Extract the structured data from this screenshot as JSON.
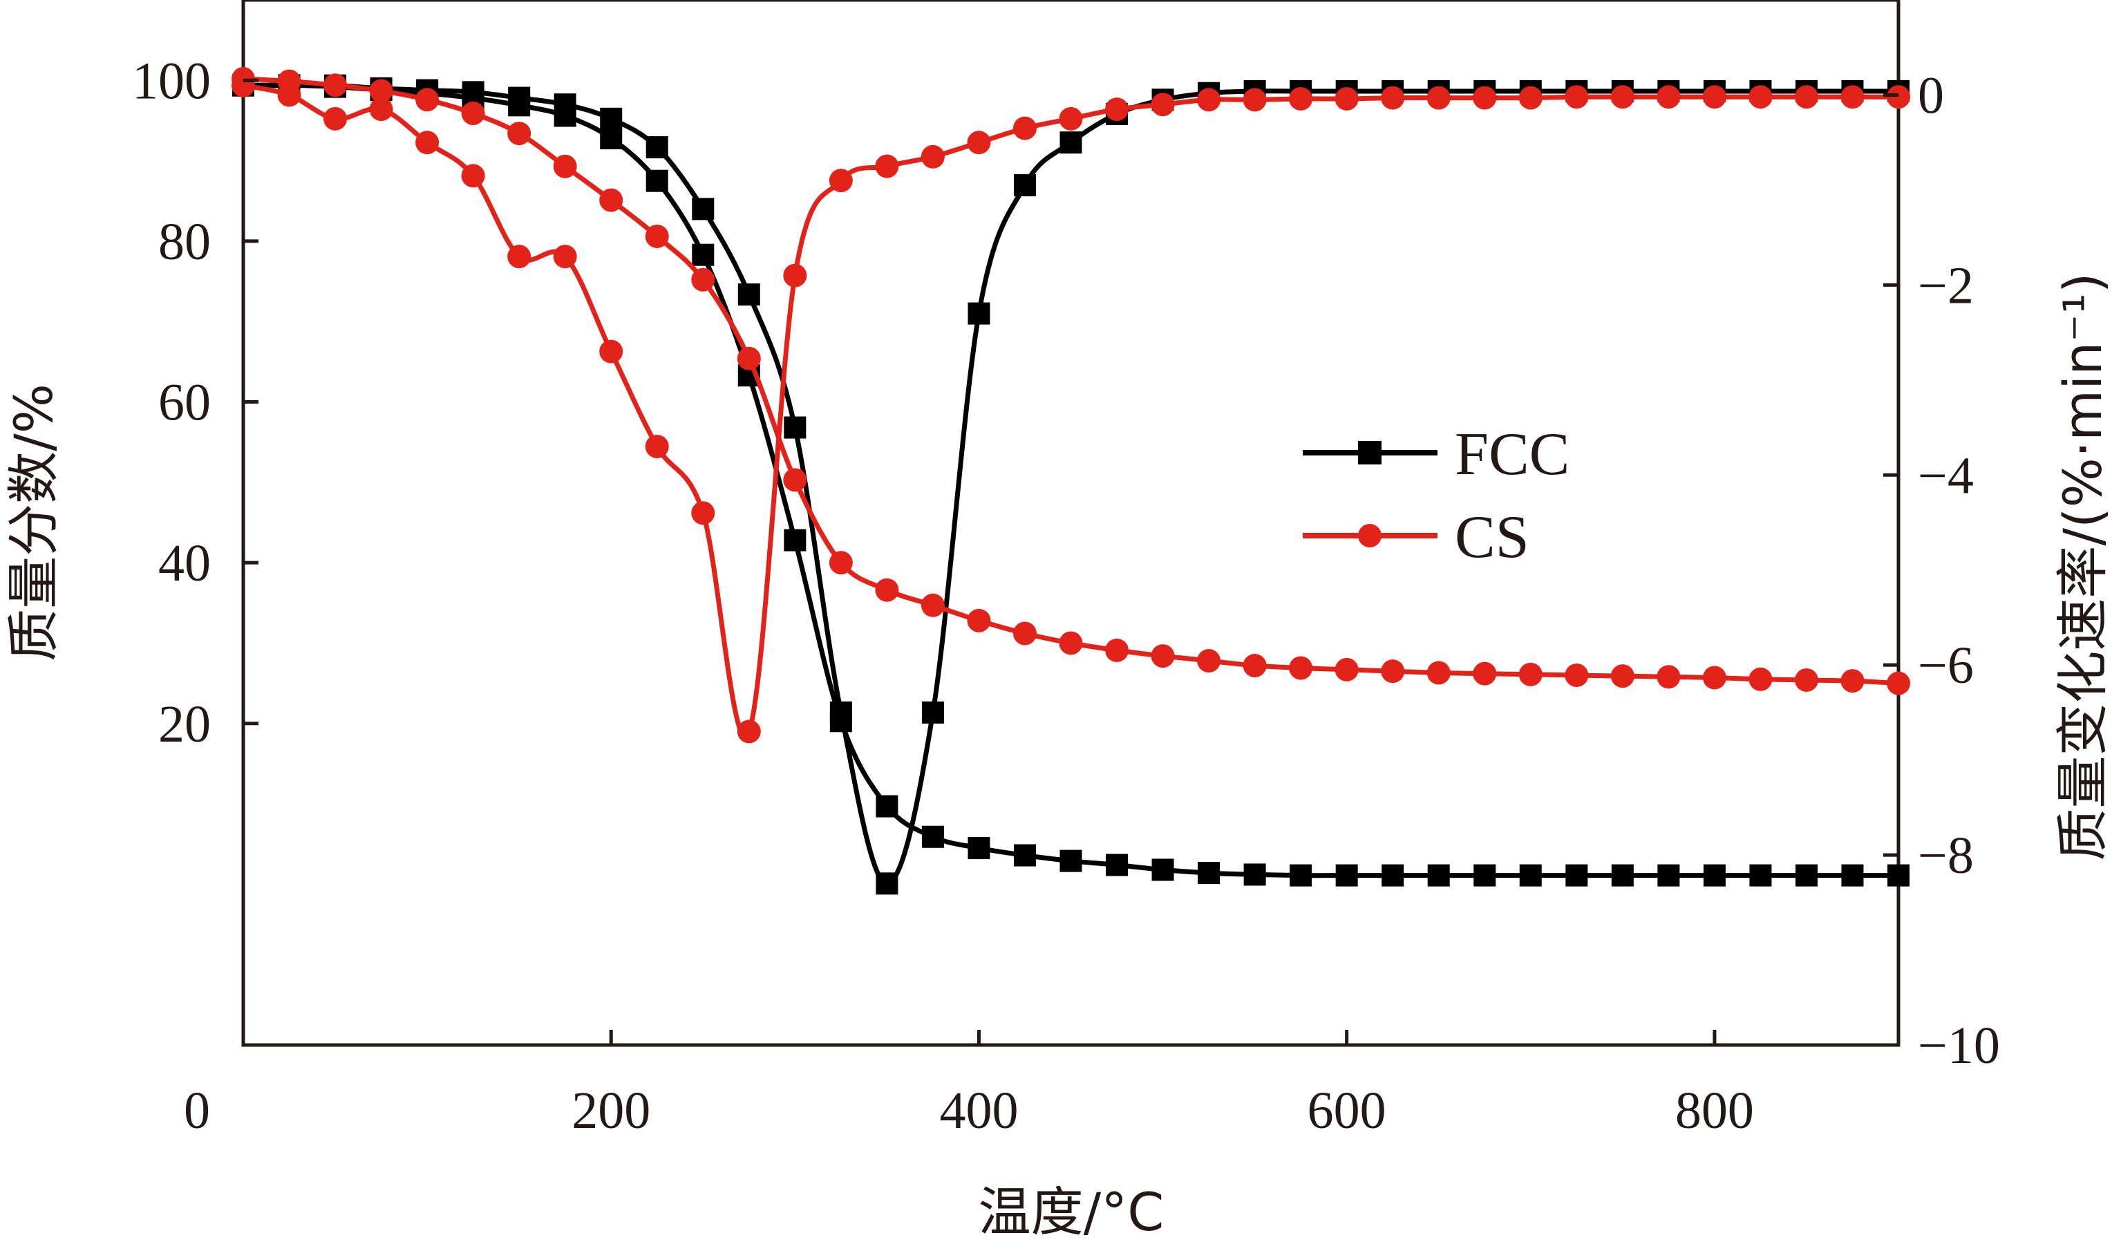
{
  "chart_data": {
    "type": "line",
    "title": "",
    "xlabel": "温度/°C",
    "ylabel_left": "质量分数/%",
    "ylabel_right": "质量变化速率/(%·min⁻¹)",
    "xlim": [
      0,
      900
    ],
    "ylim_left": [
      -20,
      110
    ],
    "ylim_right": [
      -10,
      1
    ],
    "x_ticks": [
      0,
      200,
      400,
      600,
      800
    ],
    "x_tick_labels": [
      "0",
      "200",
      "400",
      "600",
      "800"
    ],
    "y_left_ticks": [
      20,
      40,
      60,
      80,
      100
    ],
    "y_left_tick_labels": [
      "20",
      "40",
      "60",
      "80",
      "100"
    ],
    "y_right_ticks": [
      0,
      -2,
      -4,
      -6,
      -8,
      -10
    ],
    "y_right_tick_labels": [
      "0",
      "−2",
      "−4",
      "−6",
      "−8",
      "−10"
    ],
    "grid": false,
    "legend_position": "center-right",
    "series": [
      {
        "name": "FCC",
        "color": "#000000",
        "marker": "square",
        "axis": "left",
        "x": [
          0,
          25,
          50,
          75,
          100,
          125,
          150,
          175,
          200,
          225,
          250,
          275,
          300,
          325,
          350,
          375,
          400,
          425,
          450,
          475,
          500,
          525,
          550,
          575,
          600,
          625,
          650,
          675,
          700,
          725,
          750,
          775,
          800,
          825,
          850,
          875,
          900
        ],
        "y": [
          99.4,
          99.4,
          99.2,
          98.8,
          98.4,
          97.8,
          96.9,
          95.6,
          92.8,
          87.5,
          78.3,
          63.3,
          42.8,
          20.3,
          9.7,
          5.9,
          4.5,
          3.6,
          2.9,
          2.4,
          1.8,
          1.4,
          1.2,
          1.1,
          1.1,
          1.1,
          1.1,
          1.1,
          1.1,
          1.1,
          1.1,
          1.1,
          1.1,
          1.1,
          1.1,
          1.1,
          1.1
        ]
      },
      {
        "name": "FCC",
        "color": "#000000",
        "marker": "square",
        "axis": "right",
        "x": [
          0,
          25,
          50,
          75,
          100,
          125,
          150,
          175,
          200,
          225,
          250,
          275,
          300,
          325,
          350,
          375,
          400,
          425,
          450,
          475,
          500,
          525,
          550,
          575,
          600,
          625,
          650,
          675,
          700,
          725,
          750,
          775,
          800,
          825,
          850,
          875,
          900
        ],
        "y": [
          0.1,
          0.1,
          0.1,
          0.07,
          0.05,
          0.03,
          -0.03,
          -0.1,
          -0.25,
          -0.55,
          -1.2,
          -2.1,
          -3.5,
          -6.5,
          -8.3,
          -6.5,
          -2.3,
          -0.95,
          -0.5,
          -0.2,
          -0.05,
          0.02,
          0.04,
          0.04,
          0.04,
          0.04,
          0.04,
          0.04,
          0.04,
          0.04,
          0.04,
          0.04,
          0.04,
          0.04,
          0.04,
          0.04,
          0.04
        ]
      },
      {
        "name": "CS",
        "color": "#e2231a",
        "marker": "circle",
        "axis": "left",
        "x": [
          0,
          25,
          50,
          75,
          100,
          125,
          150,
          175,
          200,
          225,
          250,
          275,
          300,
          325,
          350,
          375,
          400,
          425,
          450,
          475,
          500,
          525,
          550,
          575,
          600,
          625,
          650,
          675,
          700,
          725,
          750,
          775,
          800,
          825,
          850,
          875,
          900
        ],
        "y": [
          100.2,
          99.9,
          99.4,
          98.7,
          97.6,
          95.9,
          93.4,
          89.3,
          85.1,
          80.6,
          75.2,
          65.4,
          50.3,
          40.0,
          36.6,
          34.7,
          32.8,
          31.2,
          30.0,
          29.1,
          28.4,
          27.8,
          27.2,
          26.9,
          26.7,
          26.5,
          26.3,
          26.2,
          26.1,
          26.0,
          25.9,
          25.8,
          25.7,
          25.5,
          25.4,
          25.3,
          25.0
        ]
      },
      {
        "name": "CS",
        "color": "#e2231a",
        "marker": "circle",
        "axis": "right",
        "x": [
          0,
          25,
          50,
          75,
          100,
          125,
          150,
          175,
          200,
          225,
          250,
          275,
          300,
          325,
          350,
          375,
          400,
          425,
          450,
          475,
          500,
          525,
          550,
          575,
          600,
          625,
          650,
          675,
          700,
          725,
          750,
          775,
          800,
          825,
          850,
          875,
          900
        ],
        "y": [
          0.1,
          0.0,
          -0.25,
          -0.15,
          -0.5,
          -0.85,
          -1.7,
          -1.7,
          -2.7,
          -3.7,
          -4.4,
          -6.7,
          -1.9,
          -0.9,
          -0.75,
          -0.65,
          -0.5,
          -0.35,
          -0.25,
          -0.15,
          -0.1,
          -0.05,
          -0.05,
          -0.04,
          -0.04,
          -0.03,
          -0.03,
          -0.03,
          -0.03,
          -0.02,
          -0.02,
          -0.02,
          -0.02,
          -0.02,
          -0.02,
          -0.02,
          -0.02
        ]
      }
    ]
  }
}
